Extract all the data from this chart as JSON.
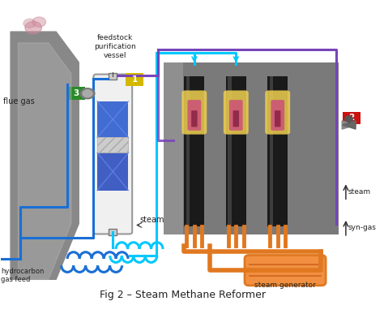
{
  "title": "Fig 2 – Steam Methane Reformer",
  "title_fontsize": 9,
  "bg_color": "#ffffff",
  "labels": {
    "feedstock": "feedstock\npurification\nvessel",
    "flue_gas": "flue gas",
    "hydrocarbon": "hydrocarbon\ngas feed",
    "steam": "steam",
    "steam_right": "steam",
    "syn_gas": "syn-gas",
    "steam_generator": "steam generator"
  },
  "badge_colors": {
    "1": "#d4b800",
    "2": "#cc1111",
    "3": "#2a8a2a"
  },
  "pipe_blue": "#1a6fd4",
  "pipe_cyan": "#00c8ff",
  "pipe_purple": "#7744bb",
  "pipe_orange": "#e07820",
  "reformer_bg": "#888888",
  "vessel_light": "#f0f0f0"
}
